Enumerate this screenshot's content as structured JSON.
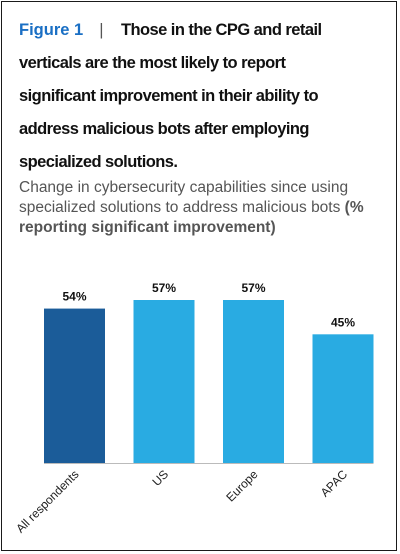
{
  "figure": {
    "label": "Figure 1",
    "separator": "|",
    "headline_line1": "Those in the CPG and retail",
    "headline_lines": [
      "verticals are the most likely to report",
      "significant improvement in their ability to",
      "address malicious bots after employing",
      "specialized solutions."
    ],
    "subtitle_text": "Change in cybersecurity capabilities since using specialized solutions to address malicious bots ",
    "subtitle_bold": "(% reporting significant improvement)"
  },
  "chart_data": {
    "type": "bar",
    "categories": [
      "All respondents",
      "US",
      "Europe",
      "APAC"
    ],
    "values": [
      54,
      57,
      57,
      45
    ],
    "value_labels": [
      "54%",
      "57%",
      "57%",
      "45%"
    ],
    "bar_colors": [
      "#1b5c99",
      "#29abe2",
      "#29abe2",
      "#29abe2"
    ],
    "ylim": [
      0,
      57
    ],
    "grid": false,
    "legend": "none",
    "title": "",
    "xlabel": "",
    "ylabel": ""
  },
  "colors": {
    "accent": "#1a6fc4",
    "primary_bar": "#1b5c99",
    "secondary_bar": "#29abe2"
  }
}
